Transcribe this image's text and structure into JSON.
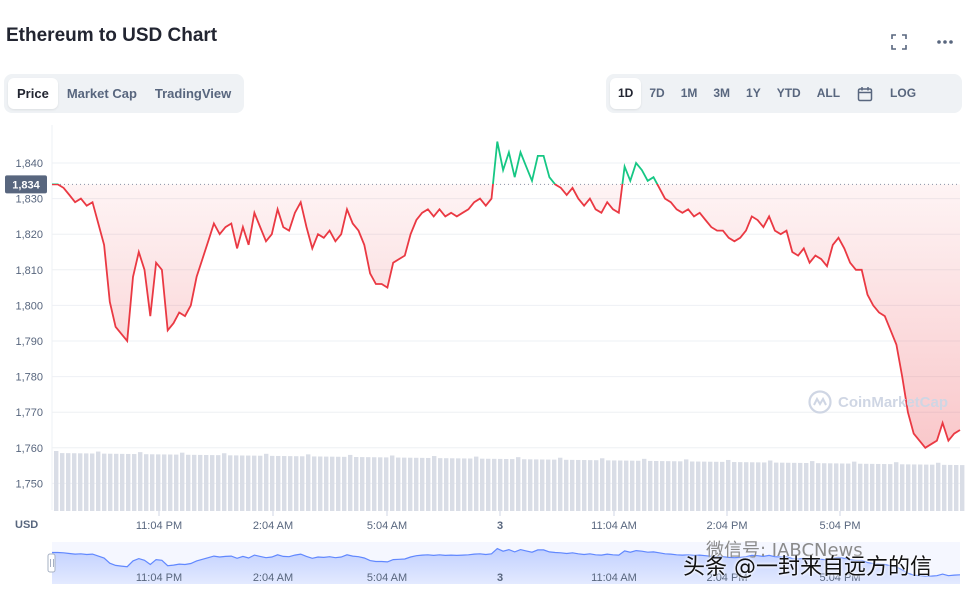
{
  "header": {
    "title": "Ethereum to USD Chart",
    "icons": [
      "fullscreen-icon",
      "more-icon"
    ]
  },
  "tabs_left": [
    {
      "label": "Price",
      "active": true
    },
    {
      "label": "Market Cap",
      "active": false
    },
    {
      "label": "TradingView",
      "active": false
    }
  ],
  "tabs_right": [
    {
      "label": "1D",
      "active": true
    },
    {
      "label": "7D",
      "active": false
    },
    {
      "label": "1M",
      "active": false
    },
    {
      "label": "3M",
      "active": false
    },
    {
      "label": "1Y",
      "active": false
    },
    {
      "label": "YTD",
      "active": false
    },
    {
      "label": "ALL",
      "active": false
    },
    {
      "label": "",
      "icon": "calendar-icon",
      "active": false
    },
    {
      "label": "LOG",
      "active": false
    }
  ],
  "watermark": "CoinMarketCap",
  "overlay": {
    "line1": "微信号: IABCNews",
    "line2": "头条 @一封来自远方的信"
  },
  "colors": {
    "up": "#16c784",
    "down": "#ea3943",
    "axis": "#58667e",
    "current_badge": "#58667e",
    "navigator": "#6188ff"
  },
  "chart_data": {
    "type": "line",
    "title": "",
    "ylabel": "USD",
    "xlabel": "",
    "ylim": [
      1746,
      1848
    ],
    "y_ticks": [
      1750,
      1760,
      1770,
      1780,
      1790,
      1800,
      1810,
      1820,
      1830,
      1840
    ],
    "x_ticks": [
      "11:04 PM",
      "2:04 AM",
      "5:04 AM",
      "3",
      "11:04 AM",
      "2:04 PM",
      "5:04 PM"
    ],
    "reference_value": 1834,
    "current_price_label": "1,834",
    "grid": true,
    "series": [
      {
        "values": [
          1834,
          1834,
          1833,
          1831,
          1829,
          1830,
          1828,
          1829,
          1823,
          1817,
          1801,
          1794,
          1792,
          1790,
          1808,
          1815,
          1810,
          1797,
          1812,
          1810,
          1793,
          1795,
          1798,
          1797,
          1800,
          1808,
          1813,
          1818,
          1823,
          1820,
          1822,
          1823,
          1816,
          1822,
          1817,
          1826,
          1822,
          1818,
          1820,
          1827,
          1822,
          1821,
          1826,
          1829,
          1822,
          1816,
          1820,
          1819,
          1821,
          1818,
          1820,
          1827,
          1823,
          1821,
          1817,
          1809,
          1806,
          1806,
          1805,
          1812,
          1813,
          1814,
          1820,
          1824,
          1826,
          1827,
          1825,
          1827,
          1825,
          1826,
          1825,
          1826,
          1827,
          1829,
          1830,
          1828,
          1830,
          1846,
          1838,
          1843,
          1836,
          1843,
          1839,
          1835,
          1842,
          1842,
          1836,
          1834,
          1833,
          1831,
          1833,
          1830,
          1828,
          1830,
          1827,
          1826,
          1829,
          1827,
          1826,
          1839,
          1835,
          1840,
          1838,
          1835,
          1836,
          1833,
          1830,
          1829,
          1827,
          1826,
          1827,
          1825,
          1826,
          1824,
          1822,
          1821,
          1821,
          1819,
          1818,
          1819,
          1821,
          1825,
          1824,
          1822,
          1825,
          1821,
          1820,
          1821,
          1815,
          1814,
          1816,
          1812,
          1814,
          1813,
          1811,
          1817,
          1819,
          1816,
          1812,
          1810,
          1810,
          1803,
          1800,
          1798,
          1797,
          1793,
          1789,
          1780,
          1770,
          1764,
          1762,
          1760,
          1761,
          1762,
          1767,
          1762,
          1764,
          1765
        ],
        "volume_bars": "present (flat, untitled)"
      }
    ]
  }
}
